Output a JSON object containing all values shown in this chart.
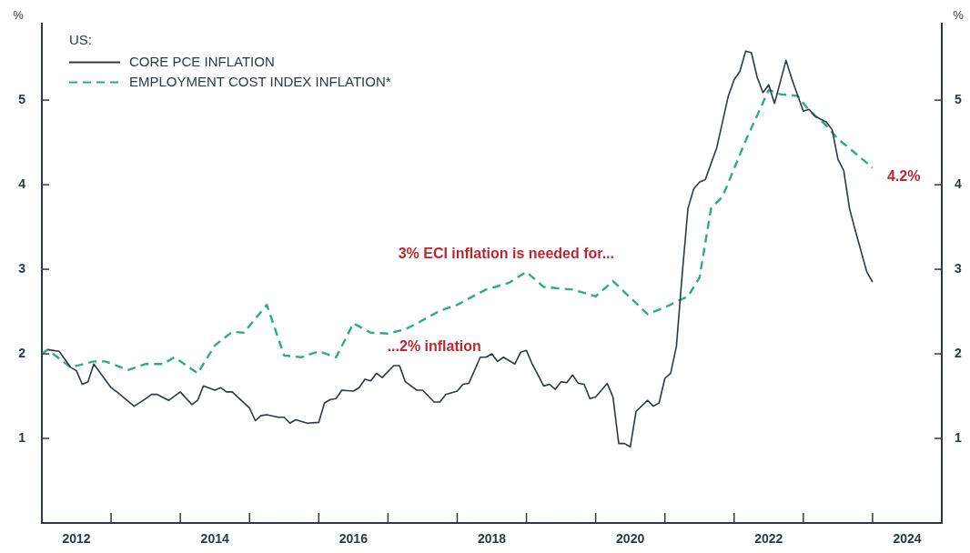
{
  "chart_data": {
    "type": "line",
    "ylabel": "%",
    "y2label": "%",
    "legend_title": "US:",
    "legend": "top left",
    "marker": "none",
    "xlim": [
      "2012-01",
      "2025-01"
    ],
    "xticks": [
      {
        "value": "2012-07",
        "label": "2012"
      },
      {
        "value": "2013-01",
        "label": null
      },
      {
        "value": "2014-01",
        "label": null
      },
      {
        "value": "2014-07",
        "label": "2014"
      },
      {
        "value": "2015-01",
        "label": null
      },
      {
        "value": "2016-01",
        "label": null
      },
      {
        "value": "2016-07",
        "label": "2016"
      },
      {
        "value": "2017-01",
        "label": null
      },
      {
        "value": "2018-01",
        "label": null
      },
      {
        "value": "2018-07",
        "label": "2018"
      },
      {
        "value": "2019-01",
        "label": null
      },
      {
        "value": "2020-01",
        "label": null
      },
      {
        "value": "2020-07",
        "label": "2020"
      },
      {
        "value": "2021-01",
        "label": null
      },
      {
        "value": "2022-01",
        "label": null
      },
      {
        "value": "2022-07",
        "label": "2022"
      },
      {
        "value": "2023-01",
        "label": null
      },
      {
        "value": "2024-01",
        "label": null
      },
      {
        "value": "2024-07",
        "label": "2024"
      }
    ],
    "ylim": [
      0,
      5.9
    ],
    "yticks": [
      1,
      2,
      3,
      4,
      5
    ],
    "y2lim": [
      0,
      5.9
    ],
    "y2ticks": [
      1,
      2,
      3,
      4,
      5
    ],
    "series": [
      {
        "name": "CORE PCE INFLATION",
        "color": "#2b3a42",
        "line_style": "solid",
        "x": [
          "2012-02",
          "2012-04",
          "2012-06",
          "2012-07",
          "2012-08",
          "2012-09",
          "2012-10",
          "2013-01",
          "2013-02",
          "2013-05",
          "2013-07",
          "2013-08",
          "2013-09",
          "2013-11",
          "2014-01",
          "2014-03",
          "2014-04",
          "2014-05",
          "2014-07",
          "2014-08",
          "2014-09",
          "2014-10",
          "2015-01",
          "2015-02",
          "2015-03",
          "2015-04",
          "2015-06",
          "2015-07",
          "2015-08",
          "2015-09",
          "2015-11",
          "2016-01",
          "2016-02",
          "2016-03",
          "2016-04",
          "2016-05",
          "2016-07",
          "2016-08",
          "2016-09",
          "2016-10",
          "2016-11",
          "2016-12",
          "2017-02",
          "2017-03",
          "2017-04",
          "2017-06",
          "2017-07",
          "2017-09",
          "2017-10",
          "2017-11",
          "2018-01",
          "2018-02",
          "2018-03",
          "2018-05",
          "2018-06",
          "2018-07",
          "2018-08",
          "2018-09",
          "2018-11",
          "2018-12",
          "2019-01",
          "2019-02",
          "2019-04",
          "2019-05",
          "2019-06",
          "2019-07",
          "2019-08",
          "2019-09",
          "2019-10",
          "2019-11",
          "2019-12",
          "2020-01",
          "2020-03",
          "2020-04",
          "2020-05",
          "2020-06",
          "2020-07",
          "2020-08",
          "2020-10",
          "2020-11",
          "2020-12",
          "2021-01",
          "2021-02",
          "2021-03",
          "2021-04",
          "2021-05",
          "2021-06",
          "2021-07",
          "2021-08",
          "2021-10",
          "2021-12",
          "2022-01",
          "2022-02",
          "2022-03",
          "2022-04",
          "2022-05",
          "2022-06",
          "2022-07",
          "2022-08",
          "2022-10",
          "2022-11",
          "2023-01",
          "2023-02",
          "2023-03",
          "2023-05",
          "2023-06",
          "2023-07",
          "2023-08",
          "2023-09",
          "2023-10",
          "2023-12",
          "2024-01"
        ],
        "values": [
          2.05,
          2.03,
          1.84,
          1.8,
          1.64,
          1.67,
          1.88,
          1.6,
          1.55,
          1.38,
          1.47,
          1.52,
          1.52,
          1.45,
          1.55,
          1.4,
          1.45,
          1.62,
          1.57,
          1.6,
          1.55,
          1.55,
          1.36,
          1.21,
          1.27,
          1.28,
          1.25,
          1.25,
          1.18,
          1.22,
          1.18,
          1.19,
          1.42,
          1.46,
          1.47,
          1.57,
          1.56,
          1.6,
          1.7,
          1.68,
          1.77,
          1.72,
          1.86,
          1.86,
          1.67,
          1.57,
          1.57,
          1.43,
          1.43,
          1.52,
          1.56,
          1.64,
          1.65,
          1.96,
          1.96,
          2.0,
          1.91,
          1.96,
          1.88,
          2.02,
          2.04,
          1.88,
          1.62,
          1.64,
          1.58,
          1.67,
          1.66,
          1.75,
          1.65,
          1.64,
          1.47,
          1.49,
          1.65,
          1.49,
          0.94,
          0.94,
          0.9,
          1.32,
          1.45,
          1.38,
          1.42,
          1.71,
          1.77,
          2.09,
          2.94,
          3.72,
          3.95,
          4.03,
          4.06,
          4.44,
          5.05,
          5.24,
          5.34,
          5.58,
          5.56,
          5.27,
          5.09,
          5.18,
          4.96,
          5.47,
          5.25,
          4.87,
          4.89,
          4.81,
          4.74,
          4.65,
          4.3,
          4.17,
          3.72,
          3.46,
          2.97,
          2.85
        ]
      },
      {
        "name": "EMPLOYMENT COST INDEX INFLATION*",
        "color": "#2bab8a",
        "line_style": "dashed",
        "x": [
          "2012-01",
          "2012-02",
          "2012-06",
          "2012-10",
          "2012-12",
          "2013-04",
          "2013-07",
          "2013-10",
          "2013-12",
          "2014-04",
          "2014-07",
          "2014-10",
          "2014-12",
          "2015-04",
          "2015-07",
          "2015-10",
          "2016-01",
          "2016-04",
          "2016-07",
          "2016-10",
          "2017-01",
          "2017-04",
          "2017-06",
          "2017-10",
          "2018-01",
          "2018-04",
          "2018-06",
          "2018-10",
          "2019-01",
          "2019-04",
          "2019-09",
          "2020-01",
          "2020-04",
          "2020-10",
          "2021-01",
          "2021-05",
          "2021-07",
          "2021-09",
          "2021-11",
          "2022-03",
          "2022-07",
          "2022-09",
          "2022-12",
          "2023-02",
          "2023-05",
          "2023-07",
          "2023-09",
          "2024-01"
        ],
        "values": [
          2.0,
          2.05,
          1.84,
          1.91,
          1.91,
          1.81,
          1.88,
          1.88,
          1.96,
          1.77,
          2.1,
          2.26,
          2.25,
          2.58,
          1.98,
          1.96,
          2.03,
          1.96,
          2.36,
          2.25,
          2.24,
          2.29,
          2.36,
          2.51,
          2.58,
          2.69,
          2.76,
          2.84,
          2.97,
          2.79,
          2.76,
          2.68,
          2.86,
          2.47,
          2.55,
          2.68,
          2.9,
          3.72,
          3.86,
          4.52,
          5.12,
          5.07,
          5.05,
          4.88,
          4.7,
          4.54,
          4.43,
          4.2
        ],
        "value_labels": [
          null,
          null,
          null,
          null,
          null,
          null,
          null,
          null,
          null,
          null,
          null,
          null,
          null,
          null,
          null,
          null,
          null,
          null,
          null,
          null,
          null,
          null,
          null,
          null,
          null,
          null,
          null,
          null,
          null,
          null,
          null,
          null,
          null,
          null,
          null,
          null,
          null,
          null,
          null,
          null,
          null,
          null,
          null,
          null,
          null,
          null,
          null,
          "4.2%"
        ]
      }
    ],
    "annotations": [
      "3% ECI inflation is needed for...",
      "...2% inflation"
    ]
  }
}
